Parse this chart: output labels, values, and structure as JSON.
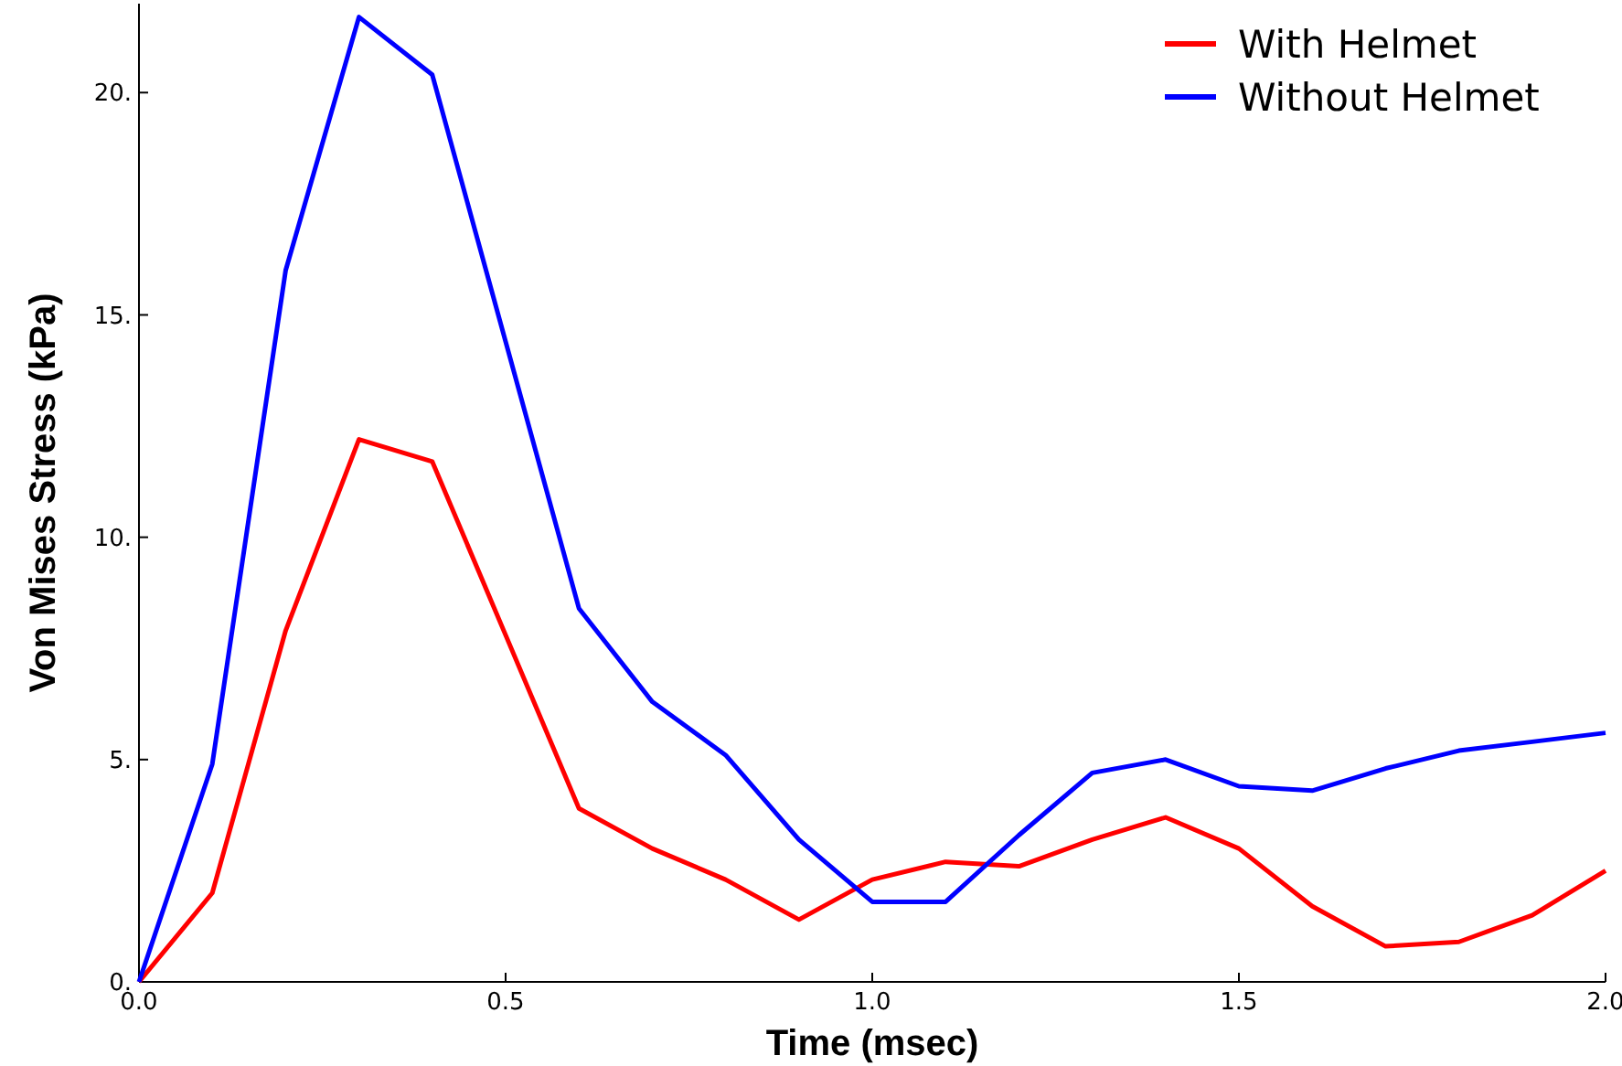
{
  "chart_data": {
    "type": "line",
    "xlabel": "Time (msec)",
    "ylabel": "Von Mises Stress (kPa)",
    "x": [
      0,
      0.1,
      0.2,
      0.3,
      0.4,
      0.5,
      0.6,
      0.7,
      0.8,
      0.9,
      1.0,
      1.1,
      1.2,
      1.3,
      1.4,
      1.5,
      1.6,
      1.7,
      1.8,
      1.9,
      2.0
    ],
    "series": [
      {
        "name": "With Helmet",
        "color": "#ff0000",
        "values": [
          0,
          2.0,
          7.9,
          12.2,
          11.7,
          7.8,
          3.9,
          3.0,
          2.3,
          1.4,
          2.3,
          2.7,
          2.6,
          3.2,
          3.7,
          3.0,
          1.7,
          0.8,
          0.9,
          1.5,
          2.5
        ]
      },
      {
        "name": "Without Helmet",
        "color": "#0000ff",
        "values": [
          0,
          4.9,
          16.0,
          21.7,
          20.4,
          14.4,
          8.4,
          6.3,
          5.1,
          3.2,
          1.8,
          1.8,
          3.3,
          4.7,
          5.0,
          4.4,
          4.3,
          4.8,
          5.2,
          5.4,
          5.6
        ]
      }
    ],
    "xlim": [
      0,
      2
    ],
    "ylim": [
      0,
      22
    ],
    "xticks": [
      {
        "value": 0,
        "label": "0.0"
      },
      {
        "value": 0.5,
        "label": "0.5"
      },
      {
        "value": 1,
        "label": "1.0"
      },
      {
        "value": 1.5,
        "label": "1.5"
      },
      {
        "value": 2,
        "label": "2.0"
      }
    ],
    "yticks": [
      {
        "value": 0,
        "label": "0."
      },
      {
        "value": 5,
        "label": "5."
      },
      {
        "value": 10,
        "label": "10."
      },
      {
        "value": 15,
        "label": "15."
      },
      {
        "value": 20,
        "label": "20."
      }
    ],
    "legend": "top right",
    "grid": false,
    "marker": "none",
    "line_style": "solid"
  }
}
